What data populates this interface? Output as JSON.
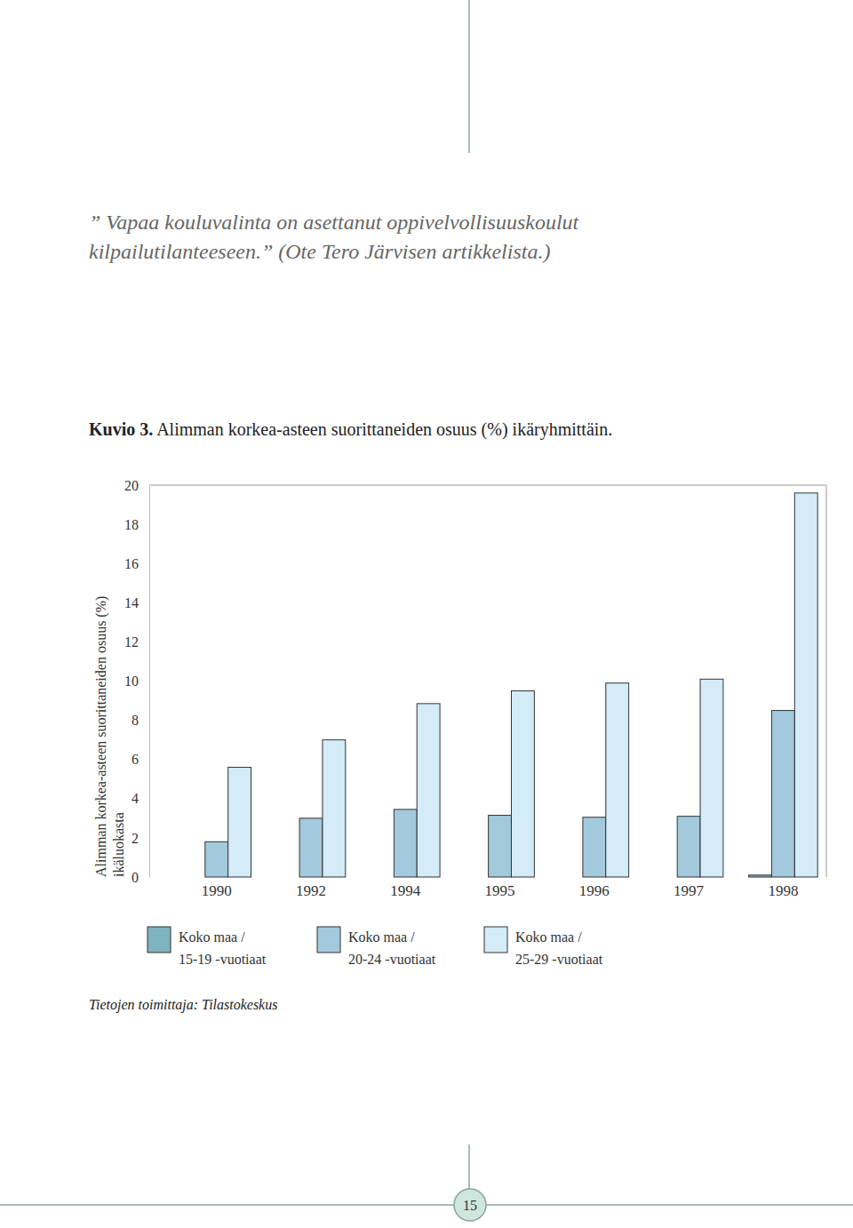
{
  "page": {
    "quote": [
      "” Vapaa kouluvalinta on asettanut oppivelvollisuuskoulut",
      "kilpailutilanteeseen.” (Ote Tero Järvisen artikkelista.)"
    ],
    "figure_label": "Kuvio 3.",
    "source": "Tietojen toimittaja: Tilastokeskus",
    "page_number": 15
  },
  "chart_data": {
    "type": "bar",
    "title": "Alimman korkea-asteen suorittaneiden osuus (%) ikäryhmittäin.",
    "y_label": [
      "Alimman korkea-asteen suorittaneiden osuus (%)",
      "ikäluokasta"
    ],
    "categories": [
      "1990",
      "1992",
      "1994",
      "1995",
      "1996",
      "1997",
      "1998"
    ],
    "series": [
      {
        "name": "Koko maa / 15-19 -vuotiaat",
        "color": "#7fb3c0",
        "values": [
          0,
          0,
          0,
          0,
          0,
          0,
          0.1
        ]
      },
      {
        "name": "Koko maa / 20-24 -vuotiaat",
        "color": "#a3c9dc",
        "values": [
          1.8,
          3.0,
          3.45,
          3.15,
          3.05,
          3.1,
          8.5
        ]
      },
      {
        "name": "Koko maa / 25-29 -vuotiaat",
        "color": "#d4ecf8",
        "values": [
          5.6,
          7.0,
          8.85,
          9.5,
          9.9,
          10.1,
          19.6
        ]
      }
    ],
    "ylim": [
      0,
      20
    ],
    "yticks": [
      0,
      2,
      4,
      6,
      8,
      10,
      12,
      14,
      16,
      18,
      20
    ],
    "grid": false,
    "legend": "bottom"
  }
}
